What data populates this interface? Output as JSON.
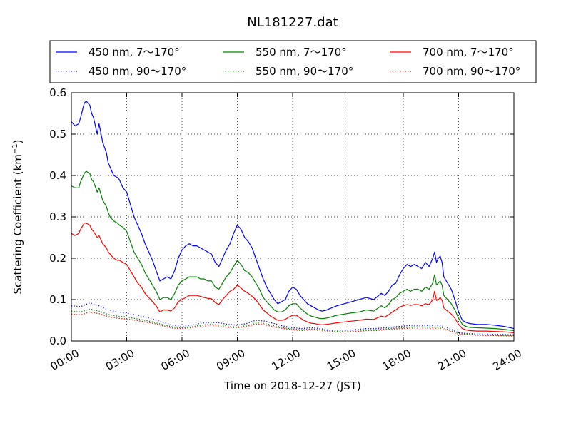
{
  "chart_data": {
    "type": "line",
    "title": "NL181227.dat",
    "xlabel": "Time on 2018-12-27 (JST)",
    "ylabel": "Scattering Coefficient (km",
    "ylabel_sup": "−1",
    "ylabel_close": ")",
    "xlim": [
      0,
      24
    ],
    "ylim": [
      0,
      0.6
    ],
    "grid": true,
    "legend_position": "top",
    "x_ticks": [
      0,
      3,
      6,
      9,
      12,
      15,
      18,
      21,
      24
    ],
    "x_tick_labels": [
      "00:00",
      "03:00",
      "06:00",
      "09:00",
      "12:00",
      "15:00",
      "18:00",
      "21:00",
      "24:00"
    ],
    "y_ticks": [
      0.0,
      0.1,
      0.2,
      0.3,
      0.4,
      0.5,
      0.6
    ],
    "y_tick_labels": [
      "0.0",
      "0.1",
      "0.2",
      "0.3",
      "0.4",
      "0.5",
      "0.6"
    ],
    "series": [
      {
        "name": "450 nm, 7～170°",
        "color": "#0000ff",
        "style": "solid",
        "x": [
          0,
          0.2,
          0.4,
          0.5,
          0.7,
          0.8,
          1.0,
          1.1,
          1.2,
          1.4,
          1.5,
          1.7,
          1.9,
          2.0,
          2.1,
          2.2,
          2.3,
          2.5,
          2.6,
          2.8,
          3.0,
          3.2,
          3.4,
          3.6,
          3.8,
          4.0,
          4.2,
          4.4,
          4.6,
          4.8,
          5.0,
          5.2,
          5.4,
          5.6,
          5.8,
          6.0,
          6.2,
          6.4,
          6.6,
          6.8,
          7.0,
          7.2,
          7.4,
          7.6,
          7.8,
          8.0,
          8.2,
          8.4,
          8.6,
          8.8,
          9.0,
          9.2,
          9.4,
          9.6,
          9.8,
          10.0,
          10.2,
          10.4,
          10.6,
          10.8,
          11.0,
          11.2,
          11.4,
          11.6,
          11.8,
          12.0,
          12.2,
          12.4,
          12.6,
          12.8,
          13.0,
          13.2,
          13.4,
          13.6,
          13.8,
          14.0,
          14.4,
          14.8,
          15.2,
          15.6,
          16.0,
          16.4,
          16.8,
          17.0,
          17.2,
          17.4,
          17.6,
          17.8,
          18.0,
          18.2,
          18.4,
          18.6,
          18.8,
          19.0,
          19.2,
          19.4,
          19.6,
          19.7,
          19.8,
          19.9,
          20.0,
          20.1,
          20.2,
          20.4,
          20.6,
          20.8,
          21.0,
          21.2,
          21.4,
          21.6,
          22.0,
          22.5,
          23.0,
          23.5,
          24.0
        ],
        "values": [
          0.53,
          0.52,
          0.525,
          0.54,
          0.575,
          0.58,
          0.57,
          0.55,
          0.54,
          0.5,
          0.525,
          0.48,
          0.455,
          0.43,
          0.42,
          0.41,
          0.4,
          0.395,
          0.39,
          0.37,
          0.36,
          0.33,
          0.3,
          0.28,
          0.26,
          0.235,
          0.215,
          0.195,
          0.17,
          0.145,
          0.15,
          0.155,
          0.15,
          0.17,
          0.2,
          0.22,
          0.23,
          0.235,
          0.23,
          0.23,
          0.225,
          0.22,
          0.215,
          0.21,
          0.19,
          0.18,
          0.2,
          0.22,
          0.235,
          0.26,
          0.28,
          0.27,
          0.25,
          0.24,
          0.225,
          0.2,
          0.175,
          0.15,
          0.13,
          0.115,
          0.1,
          0.09,
          0.095,
          0.1,
          0.12,
          0.13,
          0.125,
          0.11,
          0.1,
          0.09,
          0.085,
          0.08,
          0.075,
          0.072,
          0.074,
          0.078,
          0.085,
          0.09,
          0.095,
          0.1,
          0.105,
          0.1,
          0.115,
          0.11,
          0.12,
          0.135,
          0.14,
          0.16,
          0.175,
          0.185,
          0.18,
          0.185,
          0.18,
          0.175,
          0.19,
          0.18,
          0.2,
          0.215,
          0.19,
          0.2,
          0.205,
          0.19,
          0.155,
          0.14,
          0.125,
          0.1,
          0.07,
          0.05,
          0.045,
          0.042,
          0.04,
          0.04,
          0.038,
          0.035,
          0.03
        ]
      },
      {
        "name": "550 nm, 7～170°",
        "color": "#008000",
        "style": "solid",
        "x": [
          0,
          0.2,
          0.4,
          0.5,
          0.7,
          0.8,
          1.0,
          1.1,
          1.2,
          1.4,
          1.5,
          1.7,
          1.9,
          2.0,
          2.1,
          2.2,
          2.3,
          2.5,
          2.6,
          2.8,
          3.0,
          3.2,
          3.4,
          3.6,
          3.8,
          4.0,
          4.2,
          4.4,
          4.6,
          4.8,
          5.0,
          5.2,
          5.4,
          5.6,
          5.8,
          6.0,
          6.2,
          6.4,
          6.6,
          6.8,
          7.0,
          7.2,
          7.4,
          7.6,
          7.8,
          8.0,
          8.2,
          8.4,
          8.6,
          8.8,
          9.0,
          9.2,
          9.4,
          9.6,
          9.8,
          10.0,
          10.2,
          10.4,
          10.6,
          10.8,
          11.0,
          11.2,
          11.4,
          11.6,
          11.8,
          12.0,
          12.2,
          12.4,
          12.6,
          12.8,
          13.0,
          13.2,
          13.4,
          13.6,
          13.8,
          14.0,
          14.4,
          14.8,
          15.2,
          15.6,
          16.0,
          16.4,
          16.8,
          17.0,
          17.2,
          17.4,
          17.6,
          17.8,
          18.0,
          18.2,
          18.4,
          18.6,
          18.8,
          19.0,
          19.2,
          19.4,
          19.6,
          19.7,
          19.8,
          19.9,
          20.0,
          20.1,
          20.2,
          20.4,
          20.6,
          20.8,
          21.0,
          21.2,
          21.4,
          21.6,
          22.0,
          22.5,
          23.0,
          23.5,
          24.0
        ],
        "values": [
          0.375,
          0.37,
          0.37,
          0.385,
          0.405,
          0.41,
          0.405,
          0.39,
          0.385,
          0.36,
          0.37,
          0.34,
          0.325,
          0.31,
          0.3,
          0.295,
          0.29,
          0.285,
          0.28,
          0.275,
          0.265,
          0.24,
          0.215,
          0.2,
          0.185,
          0.165,
          0.15,
          0.135,
          0.12,
          0.1,
          0.105,
          0.105,
          0.1,
          0.115,
          0.135,
          0.145,
          0.15,
          0.155,
          0.155,
          0.155,
          0.15,
          0.15,
          0.145,
          0.145,
          0.13,
          0.125,
          0.14,
          0.155,
          0.165,
          0.18,
          0.195,
          0.185,
          0.17,
          0.165,
          0.155,
          0.14,
          0.125,
          0.105,
          0.095,
          0.085,
          0.075,
          0.07,
          0.07,
          0.075,
          0.085,
          0.09,
          0.09,
          0.08,
          0.072,
          0.065,
          0.06,
          0.058,
          0.055,
          0.054,
          0.055,
          0.057,
          0.062,
          0.065,
          0.068,
          0.07,
          0.075,
          0.072,
          0.085,
          0.08,
          0.088,
          0.1,
          0.105,
          0.115,
          0.12,
          0.125,
          0.12,
          0.125,
          0.125,
          0.12,
          0.13,
          0.125,
          0.14,
          0.16,
          0.135,
          0.14,
          0.145,
          0.135,
          0.11,
          0.1,
          0.09,
          0.075,
          0.055,
          0.04,
          0.035,
          0.033,
          0.032,
          0.031,
          0.03,
          0.028,
          0.025
        ]
      },
      {
        "name": "700 nm, 7～170°",
        "color": "#ff0000",
        "style": "solid",
        "x": [
          0,
          0.2,
          0.4,
          0.5,
          0.7,
          0.8,
          1.0,
          1.1,
          1.2,
          1.4,
          1.5,
          1.7,
          1.9,
          2.0,
          2.1,
          2.2,
          2.3,
          2.5,
          2.6,
          2.8,
          3.0,
          3.2,
          3.4,
          3.6,
          3.8,
          4.0,
          4.2,
          4.4,
          4.6,
          4.8,
          5.0,
          5.2,
          5.4,
          5.6,
          5.8,
          6.0,
          6.2,
          6.4,
          6.6,
          6.8,
          7.0,
          7.2,
          7.4,
          7.6,
          7.8,
          8.0,
          8.2,
          8.4,
          8.6,
          8.8,
          9.0,
          9.2,
          9.4,
          9.6,
          9.8,
          10.0,
          10.2,
          10.4,
          10.6,
          10.8,
          11.0,
          11.2,
          11.4,
          11.6,
          11.8,
          12.0,
          12.2,
          12.4,
          12.6,
          12.8,
          13.0,
          13.2,
          13.4,
          13.6,
          13.8,
          14.0,
          14.4,
          14.8,
          15.2,
          15.6,
          16.0,
          16.4,
          16.8,
          17.0,
          17.2,
          17.4,
          17.6,
          17.8,
          18.0,
          18.2,
          18.4,
          18.6,
          18.8,
          19.0,
          19.2,
          19.4,
          19.6,
          19.7,
          19.8,
          19.9,
          20.0,
          20.1,
          20.2,
          20.4,
          20.6,
          20.8,
          21.0,
          21.2,
          21.4,
          21.6,
          22.0,
          22.5,
          23.0,
          23.5,
          24.0
        ],
        "values": [
          0.26,
          0.255,
          0.26,
          0.27,
          0.285,
          0.285,
          0.28,
          0.27,
          0.265,
          0.25,
          0.255,
          0.235,
          0.225,
          0.215,
          0.21,
          0.205,
          0.2,
          0.195,
          0.195,
          0.19,
          0.185,
          0.17,
          0.155,
          0.14,
          0.13,
          0.115,
          0.105,
          0.095,
          0.085,
          0.07,
          0.075,
          0.075,
          0.072,
          0.08,
          0.095,
          0.1,
          0.105,
          0.11,
          0.11,
          0.11,
          0.108,
          0.105,
          0.103,
          0.102,
          0.093,
          0.088,
          0.1,
          0.11,
          0.12,
          0.125,
          0.135,
          0.128,
          0.12,
          0.115,
          0.108,
          0.1,
          0.088,
          0.075,
          0.068,
          0.06,
          0.055,
          0.05,
          0.05,
          0.052,
          0.058,
          0.062,
          0.062,
          0.056,
          0.05,
          0.046,
          0.043,
          0.042,
          0.04,
          0.039,
          0.04,
          0.041,
          0.044,
          0.046,
          0.048,
          0.05,
          0.053,
          0.052,
          0.06,
          0.058,
          0.063,
          0.07,
          0.075,
          0.082,
          0.085,
          0.088,
          0.086,
          0.088,
          0.088,
          0.085,
          0.09,
          0.088,
          0.1,
          0.12,
          0.098,
          0.1,
          0.105,
          0.098,
          0.08,
          0.072,
          0.065,
          0.055,
          0.04,
          0.03,
          0.027,
          0.025,
          0.024,
          0.024,
          0.023,
          0.022,
          0.02
        ]
      },
      {
        "name": "450 nm, 90～170°",
        "color": "#0000ff",
        "style": "dotted",
        "x": [
          0,
          0.5,
          1.0,
          1.5,
          2.0,
          2.5,
          3.0,
          3.5,
          4.0,
          4.5,
          5.0,
          5.5,
          6.0,
          6.5,
          7.0,
          7.5,
          8.0,
          8.5,
          9.0,
          9.5,
          10.0,
          10.5,
          11.0,
          11.5,
          12.0,
          12.5,
          13.0,
          13.5,
          14.0,
          14.5,
          15.0,
          15.5,
          16.0,
          16.5,
          17.0,
          17.5,
          18.0,
          18.5,
          19.0,
          19.5,
          20.0,
          20.5,
          21.0,
          21.5,
          22.0,
          23.0,
          24.0
        ],
        "values": [
          0.085,
          0.083,
          0.092,
          0.085,
          0.075,
          0.07,
          0.067,
          0.063,
          0.058,
          0.052,
          0.045,
          0.038,
          0.035,
          0.038,
          0.043,
          0.045,
          0.044,
          0.04,
          0.038,
          0.042,
          0.05,
          0.048,
          0.042,
          0.036,
          0.032,
          0.03,
          0.032,
          0.03,
          0.026,
          0.025,
          0.026,
          0.028,
          0.03,
          0.03,
          0.032,
          0.034,
          0.036,
          0.038,
          0.038,
          0.037,
          0.038,
          0.03,
          0.02,
          0.018,
          0.017,
          0.016,
          0.015
        ]
      },
      {
        "name": "550 nm, 90～170°",
        "color": "#008000",
        "style": "dotted",
        "x": [
          0,
          0.5,
          1.0,
          1.5,
          2.0,
          2.5,
          3.0,
          3.5,
          4.0,
          4.5,
          5.0,
          5.5,
          6.0,
          6.5,
          7.0,
          7.5,
          8.0,
          8.5,
          9.0,
          9.5,
          10.0,
          10.5,
          11.0,
          11.5,
          12.0,
          12.5,
          13.0,
          13.5,
          14.0,
          14.5,
          15.0,
          15.5,
          16.0,
          16.5,
          17.0,
          17.5,
          18.0,
          18.5,
          19.0,
          19.5,
          20.0,
          20.5,
          21.0,
          21.5,
          22.0,
          23.0,
          24.0
        ],
        "values": [
          0.072,
          0.07,
          0.077,
          0.072,
          0.064,
          0.06,
          0.058,
          0.054,
          0.05,
          0.045,
          0.039,
          0.034,
          0.032,
          0.034,
          0.038,
          0.04,
          0.039,
          0.036,
          0.034,
          0.037,
          0.044,
          0.042,
          0.037,
          0.032,
          0.029,
          0.027,
          0.029,
          0.027,
          0.024,
          0.023,
          0.024,
          0.025,
          0.027,
          0.027,
          0.029,
          0.031,
          0.032,
          0.034,
          0.034,
          0.033,
          0.034,
          0.026,
          0.018,
          0.016,
          0.015,
          0.014,
          0.013
        ]
      },
      {
        "name": "700 nm, 90～170°",
        "color": "#ff0000",
        "style": "dotted",
        "x": [
          0,
          0.5,
          1.0,
          1.5,
          2.0,
          2.5,
          3.0,
          3.5,
          4.0,
          4.5,
          5.0,
          5.5,
          6.0,
          6.5,
          7.0,
          7.5,
          8.0,
          8.5,
          9.0,
          9.5,
          10.0,
          10.5,
          11.0,
          11.5,
          12.0,
          12.5,
          13.0,
          13.5,
          14.0,
          14.5,
          15.0,
          15.5,
          16.0,
          16.5,
          17.0,
          17.5,
          18.0,
          18.5,
          19.0,
          19.5,
          20.0,
          20.5,
          21.0,
          21.5,
          22.0,
          23.0,
          24.0
        ],
        "values": [
          0.065,
          0.063,
          0.07,
          0.066,
          0.059,
          0.055,
          0.053,
          0.05,
          0.046,
          0.042,
          0.036,
          0.031,
          0.03,
          0.032,
          0.035,
          0.037,
          0.036,
          0.033,
          0.032,
          0.035,
          0.041,
          0.039,
          0.034,
          0.03,
          0.027,
          0.025,
          0.027,
          0.025,
          0.022,
          0.021,
          0.022,
          0.023,
          0.025,
          0.025,
          0.027,
          0.029,
          0.03,
          0.031,
          0.031,
          0.03,
          0.031,
          0.024,
          0.016,
          0.015,
          0.014,
          0.013,
          0.012
        ]
      }
    ]
  }
}
